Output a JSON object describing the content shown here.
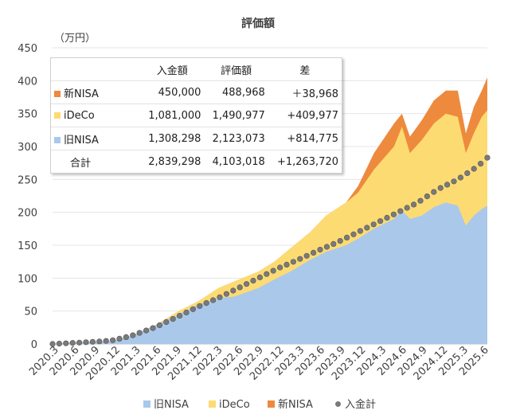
{
  "chart_data": {
    "type": "area",
    "title": "評価額",
    "ylabel": "（万円）",
    "ylim": [
      0,
      450
    ],
    "yticks": [
      0,
      50,
      100,
      150,
      200,
      250,
      300,
      350,
      400,
      450
    ],
    "xticks": [
      "2020.3",
      "2020.6",
      "2020.9",
      "2020.12",
      "2021.3",
      "2021.6",
      "2021.9",
      "2021.12",
      "2022.3",
      "2022.6",
      "2022.9",
      "2022.12",
      "2023.3",
      "2023.6",
      "2023.9",
      "2023.12",
      "2024.3",
      "2024.6",
      "2024.9",
      "2024.12",
      "2025.3",
      "2025.6"
    ],
    "series": [
      {
        "name": "旧NISA",
        "color": "#aac8ea",
        "points": [
          [
            2020.17,
            0
          ],
          [
            2020.5,
            2
          ],
          [
            2020.9,
            4
          ],
          [
            2021.15,
            12
          ],
          [
            2021.45,
            28
          ],
          [
            2021.75,
            45
          ],
          [
            2022.0,
            60
          ],
          [
            2022.25,
            70
          ],
          [
            2022.45,
            72
          ],
          [
            2022.75,
            85
          ],
          [
            2022.95,
            98
          ],
          [
            2023.15,
            110
          ],
          [
            2023.4,
            128
          ],
          [
            2023.6,
            140
          ],
          [
            2023.85,
            150
          ],
          [
            2024.0,
            160
          ],
          [
            2024.2,
            175
          ],
          [
            2024.45,
            190
          ],
          [
            2024.55,
            203
          ],
          [
            2024.65,
            190
          ],
          [
            2024.8,
            195
          ],
          [
            2024.95,
            208
          ],
          [
            2025.1,
            215
          ],
          [
            2025.25,
            210
          ],
          [
            2025.35,
            180
          ],
          [
            2025.45,
            195
          ],
          [
            2025.55,
            205
          ],
          [
            2025.62,
            210
          ]
        ]
      },
      {
        "name": "iDeCo",
        "color": "#fddb73",
        "points": [
          [
            2020.17,
            0
          ],
          [
            2020.5,
            2
          ],
          [
            2020.9,
            4
          ],
          [
            2021.15,
            12
          ],
          [
            2021.45,
            28
          ],
          [
            2021.75,
            50
          ],
          [
            2022.0,
            65
          ],
          [
            2022.25,
            85
          ],
          [
            2022.45,
            95
          ],
          [
            2022.75,
            110
          ],
          [
            2022.95,
            125
          ],
          [
            2023.15,
            145
          ],
          [
            2023.4,
            170
          ],
          [
            2023.6,
            195
          ],
          [
            2023.85,
            215
          ],
          [
            2024.0,
            230
          ],
          [
            2024.2,
            265
          ],
          [
            2024.45,
            300
          ],
          [
            2024.55,
            330
          ],
          [
            2024.65,
            290
          ],
          [
            2024.8,
            310
          ],
          [
            2024.95,
            335
          ],
          [
            2025.1,
            350
          ],
          [
            2025.25,
            345
          ],
          [
            2025.35,
            290
          ],
          [
            2025.45,
            320
          ],
          [
            2025.55,
            345
          ],
          [
            2025.62,
            355
          ]
        ]
      },
      {
        "name": "新NISA",
        "color": "#ed8a3e",
        "points": [
          [
            2020.17,
            0
          ],
          [
            2020.5,
            2
          ],
          [
            2020.9,
            4
          ],
          [
            2021.15,
            12
          ],
          [
            2021.45,
            28
          ],
          [
            2021.75,
            50
          ],
          [
            2022.0,
            65
          ],
          [
            2022.25,
            85
          ],
          [
            2022.45,
            95
          ],
          [
            2022.75,
            110
          ],
          [
            2022.95,
            125
          ],
          [
            2023.15,
            145
          ],
          [
            2023.4,
            170
          ],
          [
            2023.6,
            195
          ],
          [
            2023.85,
            215
          ],
          [
            2024.0,
            240
          ],
          [
            2024.2,
            290
          ],
          [
            2024.45,
            335
          ],
          [
            2024.55,
            350
          ],
          [
            2024.65,
            315
          ],
          [
            2024.8,
            340
          ],
          [
            2024.95,
            370
          ],
          [
            2025.1,
            385
          ],
          [
            2025.25,
            385
          ],
          [
            2025.35,
            320
          ],
          [
            2025.45,
            360
          ],
          [
            2025.55,
            385
          ],
          [
            2025.62,
            405
          ]
        ]
      }
    ],
    "deposit": {
      "name": "入金計",
      "color": "#7a7a7a",
      "points": [
        [
          2020.17,
          0
        ],
        [
          2020.5,
          2
        ],
        [
          2020.9,
          5
        ],
        [
          2021.15,
          12
        ],
        [
          2021.45,
          25
        ],
        [
          2021.75,
          42
        ],
        [
          2022.0,
          57
        ],
        [
          2022.25,
          70
        ],
        [
          2022.5,
          85
        ],
        [
          2022.75,
          100
        ],
        [
          2023.0,
          115
        ],
        [
          2023.25,
          128
        ],
        [
          2023.5,
          142
        ],
        [
          2023.75,
          155
        ],
        [
          2024.0,
          170
        ],
        [
          2024.25,
          185
        ],
        [
          2024.5,
          200
        ],
        [
          2024.75,
          215
        ],
        [
          2025.0,
          235
        ],
        [
          2025.25,
          250
        ],
        [
          2025.5,
          270
        ],
        [
          2025.62,
          283
        ]
      ]
    },
    "legend": [
      "旧NISA",
      "iDeCo",
      "新NISA",
      "入金計"
    ],
    "legend_position": "bottom"
  },
  "table": {
    "headers": [
      "",
      "入金額",
      "評価額",
      "差"
    ],
    "rows": [
      {
        "name": "新NISA",
        "color": "#ed8a3e",
        "deposit": "450,000",
        "value": "488,968",
        "diff": "＋38,968"
      },
      {
        "name": "iDeCo",
        "color": "#fddb73",
        "deposit": "1,081,000",
        "value": "1,490,977",
        "diff": "+409,977"
      },
      {
        "name": "旧NISA",
        "color": "#aac8ea",
        "deposit": "1,308,298",
        "value": "2,123,073",
        "diff": "+814,775"
      },
      {
        "name": "合計",
        "color": "",
        "deposit": "2,839,298",
        "value": "4,103,018",
        "diff": "+1,263,720"
      }
    ]
  }
}
